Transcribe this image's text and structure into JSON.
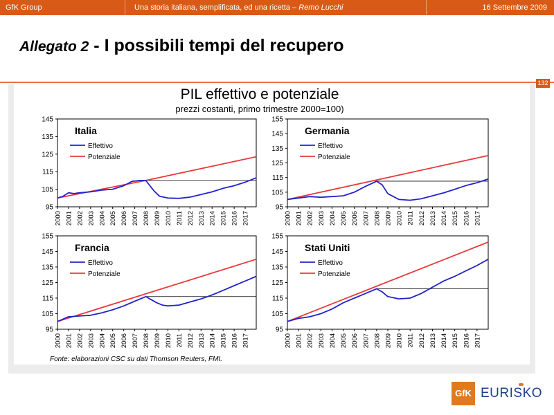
{
  "header": {
    "company": "GfK Group",
    "subtitle_main": "Una storia italiana, semplificata, ed una ricetta – ",
    "subtitle_author": "Remo Lucchi",
    "date": "16 Settembre 2009"
  },
  "slide": {
    "title_prefix": "Allegato 2",
    "title_main": " - I possibili tempi del recupero",
    "page_number": "132",
    "chart_title": "PIL effettivo e potenziale",
    "chart_subtitle": "prezzi costanti, primo trimestre 2000=100)",
    "source": "Fonte: elaborazioni CSC su dati Thomson Reuters, FMI."
  },
  "logo": {
    "box": "GfK",
    "text": "EURISKO"
  },
  "colors": {
    "effettivo": "#2222cc",
    "potenziale": "#e8393a",
    "brand": "#d95a16"
  },
  "chart_data": [
    {
      "type": "line",
      "title": "Italia",
      "ylim": [
        95,
        145
      ],
      "yticks": [
        95,
        105,
        115,
        125,
        135,
        145
      ],
      "xlim": [
        2000,
        2018
      ],
      "xticks": [
        "2000",
        "2001",
        "2002",
        "2003",
        "2004",
        "2005",
        "2006",
        "2007",
        "2008",
        "2009",
        "2010",
        "2011",
        "2012",
        "2013",
        "2014",
        "2015",
        "2016",
        "2017"
      ],
      "series": [
        {
          "name": "Effettivo",
          "points": [
            [
              2000,
              100
            ],
            [
              2000.5,
              101
            ],
            [
              2001,
              103
            ],
            [
              2001.5,
              102.5
            ],
            [
              2002,
              103
            ],
            [
              2003,
              103.5
            ],
            [
              2003.5,
              104
            ],
            [
              2004,
              104.5
            ],
            [
              2005,
              105
            ],
            [
              2006,
              107
            ],
            [
              2006.75,
              109.5
            ],
            [
              2007.5,
              110
            ],
            [
              2008,
              110
            ],
            [
              2008.25,
              108
            ],
            [
              2008.75,
              104
            ],
            [
              2009.25,
              101
            ],
            [
              2010,
              100
            ],
            [
              2011,
              99.8
            ],
            [
              2012,
              100.5
            ],
            [
              2013,
              102
            ],
            [
              2014,
              103.5
            ],
            [
              2015,
              105.5
            ],
            [
              2016,
              107
            ],
            [
              2017,
              109
            ],
            [
              2018,
              111.5
            ]
          ]
        },
        {
          "name": "Potenziale",
          "points": [
            [
              2000,
              100
            ],
            [
              2008,
              110
            ],
            [
              2018,
              123.5
            ]
          ]
        }
      ],
      "reference_level": 110,
      "reference_from": 2008
    },
    {
      "type": "line",
      "title": "Germania",
      "ylim": [
        95,
        155
      ],
      "yticks": [
        95,
        105,
        115,
        125,
        135,
        145,
        155
      ],
      "xlim": [
        2000,
        2018
      ],
      "xticks": [
        "2000",
        "2001",
        "2002",
        "2003",
        "2004",
        "2005",
        "2006",
        "2007",
        "2008",
        "2009",
        "2010",
        "2011",
        "2012",
        "2013",
        "2014",
        "2015",
        "2016",
        "2017"
      ],
      "series": [
        {
          "name": "Effettivo",
          "points": [
            [
              2000,
              100
            ],
            [
              2001,
              101
            ],
            [
              2002,
              102
            ],
            [
              2003,
              101.5
            ],
            [
              2004,
              102
            ],
            [
              2005,
              102.5
            ],
            [
              2006,
              105
            ],
            [
              2007,
              109
            ],
            [
              2008,
              112.5
            ],
            [
              2008.5,
              110
            ],
            [
              2009,
              104
            ],
            [
              2010,
              100
            ],
            [
              2011,
              99.5
            ],
            [
              2012,
              100.5
            ],
            [
              2013,
              102.5
            ],
            [
              2014,
              104.5
            ],
            [
              2015,
              107
            ],
            [
              2016,
              109.5
            ],
            [
              2017,
              111.5
            ],
            [
              2018,
              114
            ]
          ]
        },
        {
          "name": "Potenziale",
          "points": [
            [
              2000,
              100
            ],
            [
              2018,
              130
            ]
          ]
        }
      ],
      "reference_level": 112.5,
      "reference_from": 2008
    },
    {
      "type": "line",
      "title": "Francia",
      "ylim": [
        95,
        155
      ],
      "yticks": [
        95,
        105,
        115,
        125,
        135,
        145,
        155
      ],
      "xlim": [
        2000,
        2018
      ],
      "xticks": [
        "2000",
        "2001",
        "2002",
        "2003",
        "2004",
        "2005",
        "2006",
        "2007",
        "2008",
        "2009",
        "2010",
        "2011",
        "2012",
        "2013",
        "2014",
        "2015",
        "2016",
        "2017"
      ],
      "series": [
        {
          "name": "Effettivo",
          "points": [
            [
              2000,
              100
            ],
            [
              2001,
              103
            ],
            [
              2002,
              103.5
            ],
            [
              2003,
              104
            ],
            [
              2004,
              105.5
            ],
            [
              2005,
              107.5
            ],
            [
              2006,
              110
            ],
            [
              2007,
              113
            ],
            [
              2008,
              116
            ],
            [
              2008.5,
              114
            ],
            [
              2009,
              112
            ],
            [
              2009.5,
              110.5
            ],
            [
              2010,
              110
            ],
            [
              2011,
              110.5
            ],
            [
              2012,
              112.5
            ],
            [
              2013,
              114.5
            ],
            [
              2014,
              117
            ],
            [
              2015,
              120
            ],
            [
              2016,
              123
            ],
            [
              2017,
              126
            ],
            [
              2018,
              129
            ]
          ]
        },
        {
          "name": "Potenziale",
          "points": [
            [
              2000,
              100
            ],
            [
              2018,
              140
            ]
          ]
        }
      ],
      "reference_level": 116,
      "reference_from": 2008
    },
    {
      "type": "line",
      "title": "Stati Uniti",
      "ylim": [
        95,
        155
      ],
      "yticks": [
        95,
        105,
        115,
        125,
        135,
        145,
        155
      ],
      "xlim": [
        2000,
        2018
      ],
      "xticks": [
        "2000",
        "2001",
        "2002",
        "2003",
        "2004",
        "2005",
        "2006",
        "2007",
        "2008",
        "2009",
        "2010",
        "2011",
        "2012",
        "2013",
        "2014",
        "2015",
        "2016",
        "2017"
      ],
      "series": [
        {
          "name": "Effettivo",
          "points": [
            [
              2000,
              100
            ],
            [
              2001,
              102
            ],
            [
              2002,
              103
            ],
            [
              2003,
              105
            ],
            [
              2004,
              108
            ],
            [
              2005,
              112
            ],
            [
              2006,
              115
            ],
            [
              2007,
              118
            ],
            [
              2008,
              121
            ],
            [
              2008.5,
              119
            ],
            [
              2009,
              116
            ],
            [
              2010,
              114.5
            ],
            [
              2011,
              115
            ],
            [
              2012,
              118
            ],
            [
              2013,
              122
            ],
            [
              2014,
              126
            ],
            [
              2015,
              129
            ],
            [
              2016,
              132.5
            ],
            [
              2017,
              136
            ],
            [
              2018,
              140
            ]
          ]
        },
        {
          "name": "Potenziale",
          "points": [
            [
              2000,
              100
            ],
            [
              2018,
              151
            ]
          ]
        }
      ],
      "reference_level": 121,
      "reference_from": 2008
    }
  ]
}
